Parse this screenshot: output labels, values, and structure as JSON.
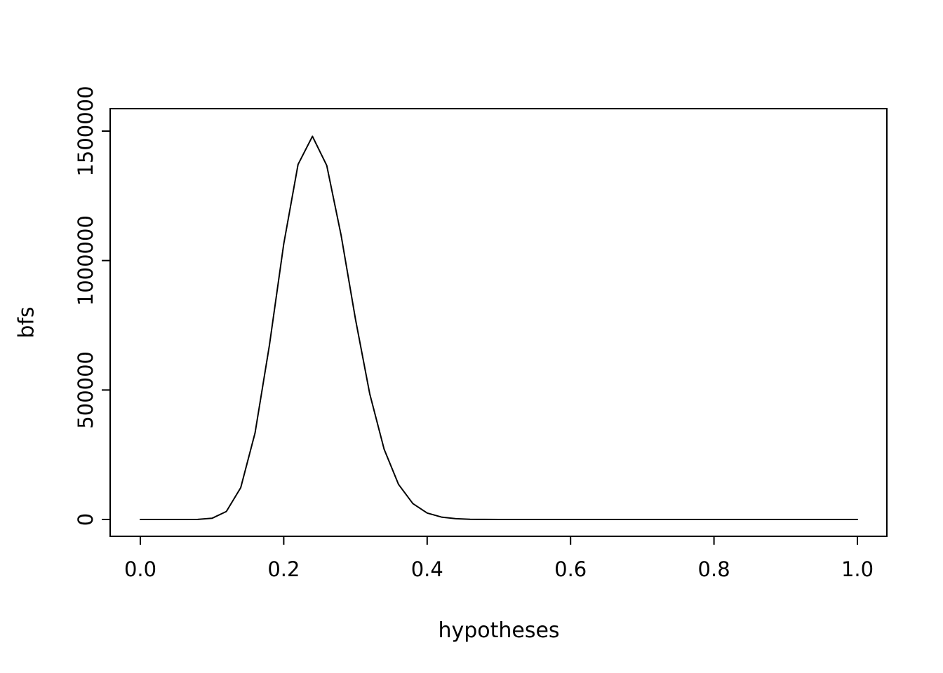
{
  "chart_data": {
    "type": "line",
    "title": "",
    "xlabel": "hypotheses",
    "ylabel": "bfs",
    "xlim": [
      0,
      1
    ],
    "ylim": [
      0,
      1500000
    ],
    "x_ticks": [
      0.0,
      0.2,
      0.4,
      0.6,
      0.8,
      1.0
    ],
    "x_tick_labels": [
      "0.0",
      "0.2",
      "0.4",
      "0.6",
      "0.8",
      "1.0"
    ],
    "y_ticks": [
      0,
      500000,
      1000000,
      1500000
    ],
    "y_tick_labels": [
      "0",
      "500000",
      "1000000",
      "1500000"
    ],
    "grid": false,
    "legend": false,
    "line_color": "#000000",
    "fg_color": "#000000",
    "background": "#ffffff",
    "peak": {
      "x": 0.24,
      "y": 1480000
    },
    "x": [
      0,
      0.02,
      0.04,
      0.06,
      0.08,
      0.1,
      0.12,
      0.14,
      0.16,
      0.18,
      0.2,
      0.22,
      0.24,
      0.26,
      0.28,
      0.3,
      0.32,
      0.34,
      0.36,
      0.38,
      0.4,
      0.42,
      0.44,
      0.46,
      0.48,
      0.5,
      0.52,
      0.54,
      0.56,
      0.58,
      0.6,
      0.62,
      0.64,
      0.66,
      0.68,
      0.7,
      0.72,
      0.74,
      0.76,
      0.78,
      0.8,
      0.82,
      0.84,
      0.86,
      0.88,
      0.9,
      0.92,
      0.94,
      0.96,
      0.98,
      1
    ],
    "y": [
      0,
      0,
      0,
      8,
      350,
      4700,
      31000,
      123000,
      334000,
      673000,
      1064000,
      1371000,
      1480000,
      1367000,
      1097000,
      774000,
      485000,
      271000,
      136000,
      61500,
      25000,
      9200,
      3000,
      900,
      250,
      60,
      14,
      3,
      1,
      0,
      0,
      0,
      0,
      0,
      0,
      0,
      0,
      0,
      0,
      0,
      0,
      0,
      0,
      0,
      0,
      0,
      0,
      0,
      0,
      0,
      0
    ]
  }
}
